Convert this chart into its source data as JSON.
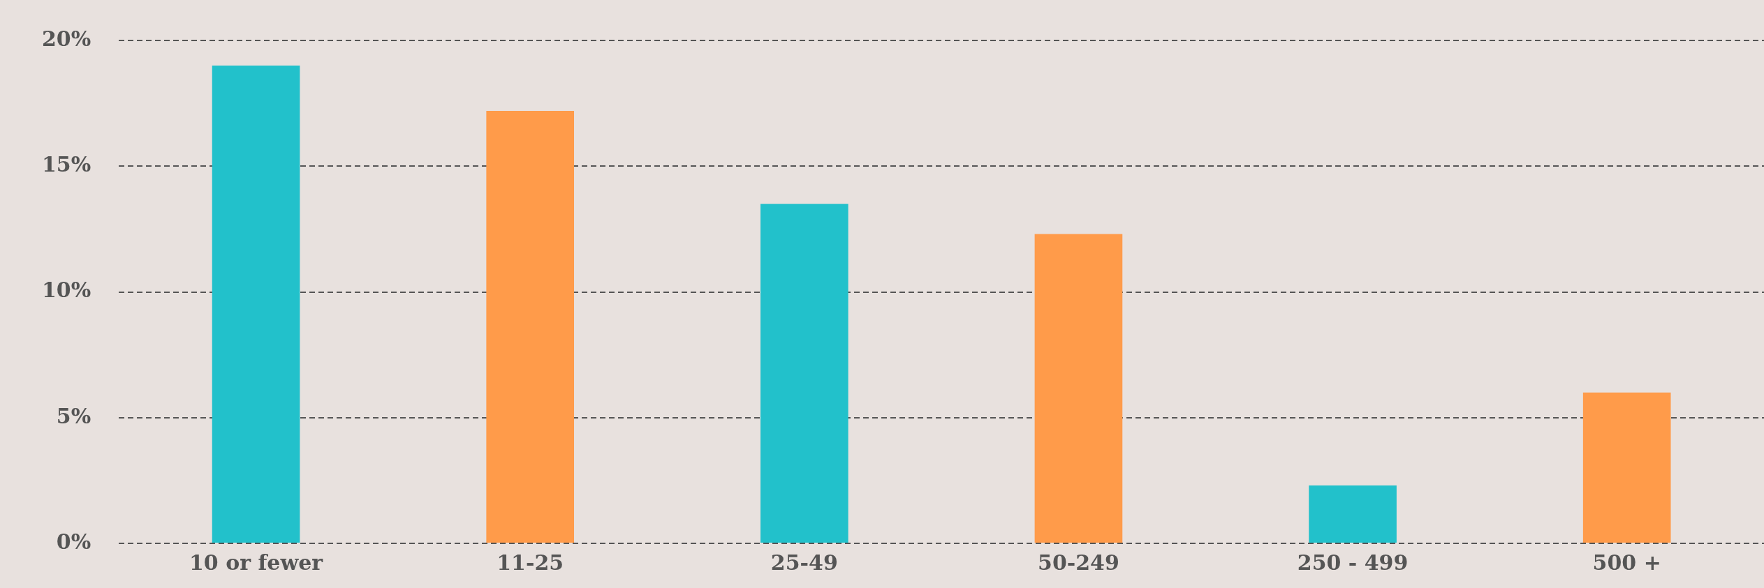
{
  "chart_data": {
    "type": "bar",
    "categories": [
      "10 or fewer",
      "11-25",
      "25-49",
      "50-249",
      "250 - 499",
      "500 +"
    ],
    "values": [
      19,
      17.2,
      13.5,
      12.3,
      2.3,
      6
    ],
    "colors": [
      "#22c1cb",
      "#ff9b4a",
      "#22c1cb",
      "#ff9b4a",
      "#22c1cb",
      "#ff9b4a"
    ],
    "ylim": [
      0,
      20
    ],
    "yticks": [
      {
        "value": 0,
        "label": "0%"
      },
      {
        "value": 5,
        "label": "5%"
      },
      {
        "value": 10,
        "label": "10%"
      },
      {
        "value": 15,
        "label": "15%"
      },
      {
        "value": 20,
        "label": "20%"
      }
    ],
    "grid": "y",
    "legend": false
  }
}
